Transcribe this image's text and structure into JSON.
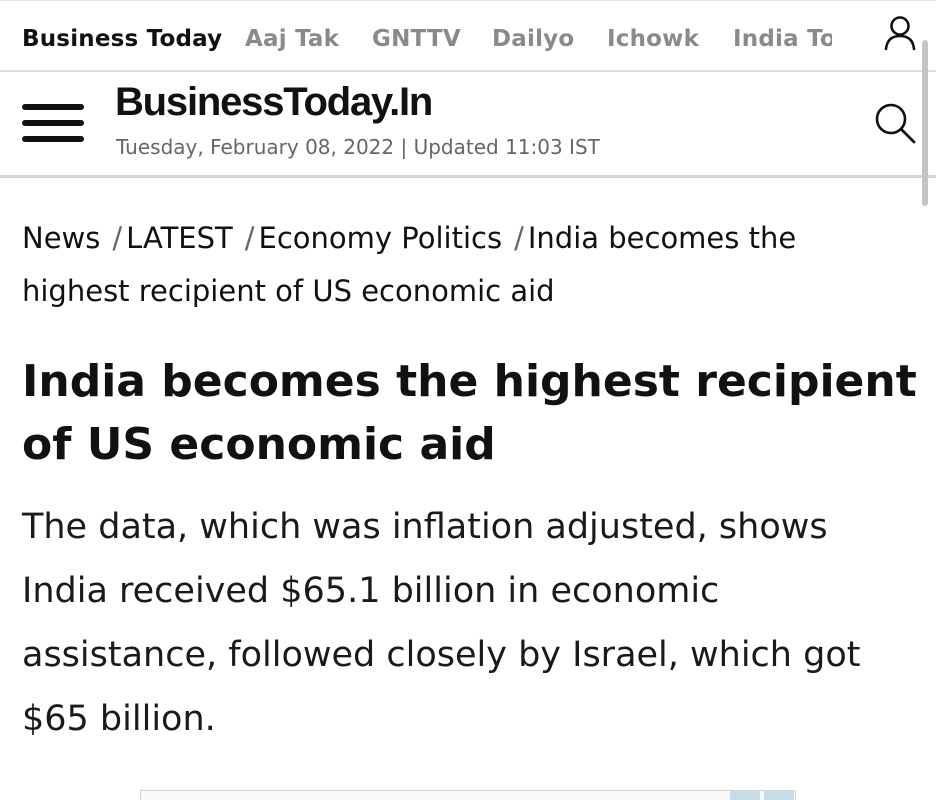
{
  "network_bar": {
    "links": [
      {
        "label": "Business Today",
        "active": true
      },
      {
        "label": "Aaj Tak",
        "active": false
      },
      {
        "label": "GNTTV",
        "active": false
      },
      {
        "label": "Dailyo",
        "active": false
      },
      {
        "label": "Ichowk",
        "active": false
      },
      {
        "label": "India To",
        "active": false
      }
    ],
    "user_icon": "user-icon"
  },
  "masthead": {
    "logo": "BusinessToday.In",
    "dateline": "Tuesday, February 08, 2022 | Updated 11:03 IST",
    "menu_icon": "hamburger-menu-icon",
    "search_icon": "search-icon"
  },
  "breadcrumb": {
    "items": [
      "News",
      "LATEST",
      "Economy Politics",
      "India becomes the highest recipient of US economic aid"
    ],
    "separator": "/"
  },
  "article": {
    "headline": "India becomes the highest recipient of US economic aid",
    "summary": "The data, which was inflation adjusted, shows India received $65.1 billion in economic assistance, followed closely by Israel, which got $65 billion."
  },
  "colors": {
    "text": "#111111",
    "muted_link": "#8a8a8a",
    "dateline": "#666666",
    "divider": "#d6d6d6"
  }
}
